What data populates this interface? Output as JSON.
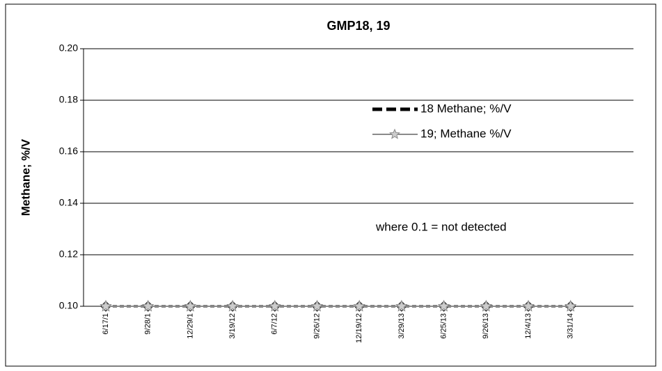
{
  "chart_data": {
    "type": "line",
    "title": "GMP18, 19",
    "y_label": "Methane; %/V",
    "annotation": "where 0.1 = not detected",
    "categories": [
      "6/17/1",
      "9/28/1",
      "12/29/1",
      "3/19/12",
      "6/7/12",
      "9/26/12",
      "12/19/12",
      "3/29/13",
      "6/25/13",
      "9/26/13",
      "12/4/13",
      "3/31/14"
    ],
    "series": [
      {
        "name": "18 Methane; %/V",
        "color": "#000000",
        "values": [
          0.1,
          0.1,
          0.1,
          0.1,
          0.1,
          0.1,
          0.1,
          0.1,
          0.1,
          0.1,
          0.1,
          0.1
        ]
      },
      {
        "name": "19; Methane %/V",
        "color": "#8a8a8a",
        "values": [
          0.1,
          0.1,
          0.1,
          0.1,
          0.1,
          0.1,
          0.1,
          0.1,
          0.1,
          0.1,
          0.1,
          0.1
        ]
      }
    ],
    "ylim": [
      0.1,
      0.2
    ],
    "yticks": [
      {
        "value": 0.1,
        "label": "0.10"
      },
      0.12,
      0.14,
      0.16,
      0.18,
      {
        "value": 0.2,
        "label": "0.20"
      }
    ],
    "grid": true
  }
}
